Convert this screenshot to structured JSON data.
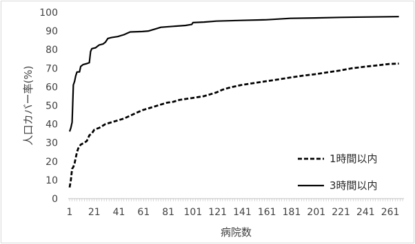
{
  "chart_data": {
    "type": "line",
    "xlabel": "病院数",
    "ylabel": "人口カバー率(%)",
    "xlim": [
      1,
      271
    ],
    "ylim": [
      0,
      100
    ],
    "x_ticks": [
      1,
      21,
      41,
      61,
      81,
      101,
      121,
      141,
      161,
      181,
      201,
      221,
      241,
      261
    ],
    "y_ticks": [
      0,
      10,
      20,
      30,
      40,
      50,
      60,
      70,
      80,
      90,
      100
    ],
    "grid": false,
    "legend_position": "bottom-right",
    "series": [
      {
        "name": "1時間以内",
        "style": "dashed",
        "color": "#000000",
        "points": [
          [
            1,
            6
          ],
          [
            2,
            10
          ],
          [
            3,
            16
          ],
          [
            4,
            17
          ],
          [
            5,
            19
          ],
          [
            6,
            22
          ],
          [
            7,
            25
          ],
          [
            8,
            27
          ],
          [
            10,
            29
          ],
          [
            13,
            30
          ],
          [
            15,
            31
          ],
          [
            17,
            34
          ],
          [
            19,
            35
          ],
          [
            21,
            37
          ],
          [
            25,
            38
          ],
          [
            30,
            40
          ],
          [
            35,
            41
          ],
          [
            40,
            42
          ],
          [
            45,
            43
          ],
          [
            50,
            44.5
          ],
          [
            55,
            46
          ],
          [
            60,
            47.5
          ],
          [
            65,
            48.5
          ],
          [
            70,
            49.5
          ],
          [
            75,
            50.5
          ],
          [
            80,
            51.5
          ],
          [
            85,
            52
          ],
          [
            90,
            53
          ],
          [
            95,
            53.5
          ],
          [
            100,
            54
          ],
          [
            110,
            55
          ],
          [
            120,
            57
          ],
          [
            125,
            58.5
          ],
          [
            130,
            59.5
          ],
          [
            140,
            61
          ],
          [
            150,
            62
          ],
          [
            160,
            63
          ],
          [
            170,
            64
          ],
          [
            180,
            65
          ],
          [
            190,
            66
          ],
          [
            200,
            66.8
          ],
          [
            210,
            67.8
          ],
          [
            220,
            68.8
          ],
          [
            230,
            70
          ],
          [
            240,
            70.8
          ],
          [
            250,
            71.5
          ],
          [
            260,
            72.3
          ],
          [
            268,
            72.5
          ]
        ]
      },
      {
        "name": "3時間以内",
        "style": "solid",
        "color": "#000000",
        "points": [
          [
            1,
            36
          ],
          [
            2,
            38
          ],
          [
            3,
            41
          ],
          [
            4,
            61
          ],
          [
            5,
            63
          ],
          [
            6,
            66
          ],
          [
            7,
            68
          ],
          [
            9,
            68
          ],
          [
            10,
            71
          ],
          [
            12,
            72
          ],
          [
            15,
            72.5
          ],
          [
            17,
            73
          ],
          [
            18,
            79
          ],
          [
            19,
            80.5
          ],
          [
            22,
            81
          ],
          [
            25,
            82.5
          ],
          [
            28,
            83
          ],
          [
            30,
            84
          ],
          [
            32,
            86
          ],
          [
            35,
            86.5
          ],
          [
            40,
            87
          ],
          [
            45,
            88
          ],
          [
            50,
            89.5
          ],
          [
            60,
            89.7
          ],
          [
            65,
            90
          ],
          [
            70,
            91
          ],
          [
            75,
            92
          ],
          [
            85,
            92.5
          ],
          [
            95,
            93
          ],
          [
            100,
            93.5
          ],
          [
            101,
            94.5
          ],
          [
            110,
            94.8
          ],
          [
            120,
            95.3
          ],
          [
            140,
            95.7
          ],
          [
            160,
            96
          ],
          [
            180,
            96.8
          ],
          [
            200,
            97
          ],
          [
            220,
            97.3
          ],
          [
            240,
            97.5
          ],
          [
            268,
            97.7
          ]
        ]
      }
    ]
  }
}
